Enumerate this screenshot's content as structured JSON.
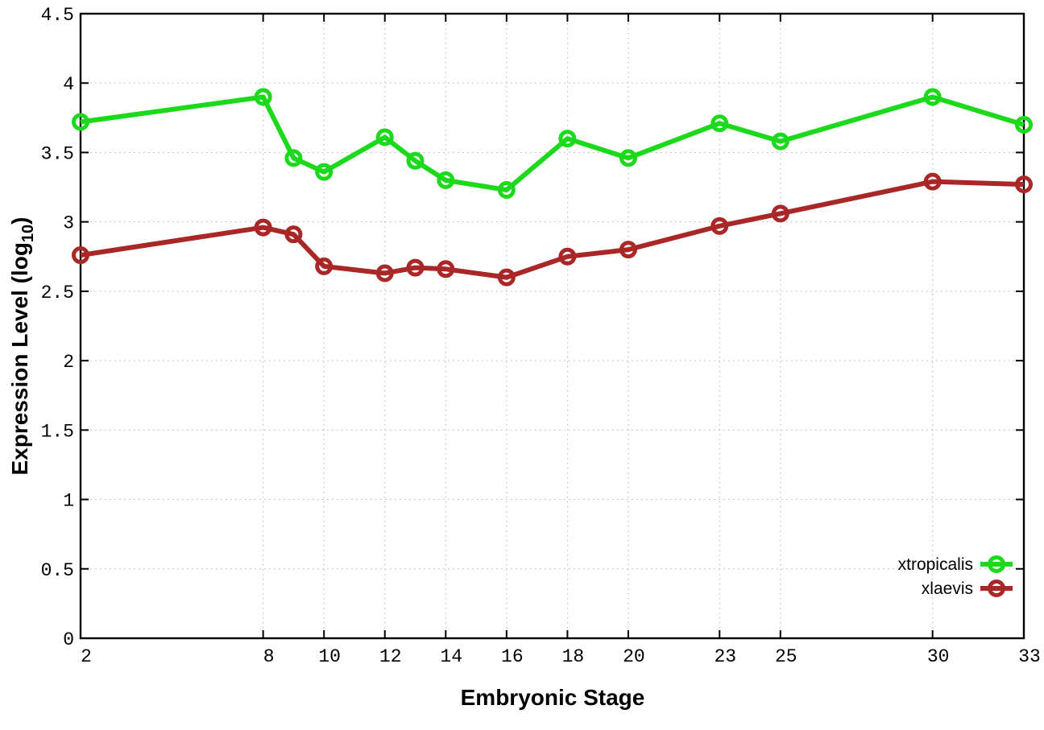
{
  "chart_data": {
    "type": "line",
    "title": "",
    "xlabel": "Embryonic Stage",
    "ylabel": "Expression Level (log10)",
    "ylabel_parts": {
      "pre": "Expression Level (log",
      "sub": "10",
      "post": ")"
    },
    "xlim": [
      2,
      33
    ],
    "ylim": [
      0,
      4.5
    ],
    "xticks": [
      2,
      8,
      10,
      12,
      14,
      16,
      18,
      20,
      23,
      25,
      30,
      33
    ],
    "yticks": [
      0,
      0.5,
      1,
      1.5,
      2,
      2.5,
      3,
      3.5,
      4,
      4.5
    ],
    "grid": true,
    "legend_position": "inside bottom-right",
    "x": [
      2,
      8,
      9,
      10,
      12,
      13,
      14,
      16,
      18,
      20,
      23,
      25,
      30,
      33
    ],
    "series": [
      {
        "name": "xtropicalis",
        "color": "#1cd91c",
        "values": [
          3.72,
          3.9,
          3.46,
          3.36,
          3.61,
          3.44,
          3.3,
          3.23,
          3.6,
          3.46,
          3.71,
          3.58,
          3.9,
          3.7
        ]
      },
      {
        "name": "xlaevis",
        "color": "#a92727",
        "values": [
          2.76,
          2.96,
          2.91,
          2.68,
          2.63,
          2.67,
          2.66,
          2.6,
          2.75,
          2.8,
          2.97,
          3.06,
          3.29,
          3.27
        ]
      }
    ],
    "marker": "open-circle",
    "colors": {
      "axis": "#000000",
      "grid": "#b5b5b5",
      "background": "#ffffff"
    }
  }
}
